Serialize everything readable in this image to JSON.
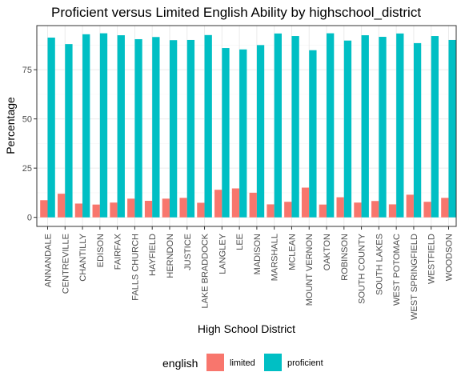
{
  "chart_data": {
    "type": "bar",
    "title": "Proficient versus Limited English Ability by highschool_district",
    "xlabel": "High School District",
    "ylabel": "Percentage",
    "ylim": [
      -4.6,
      97.4
    ],
    "yticks": [
      0,
      25,
      50,
      75
    ],
    "grid": true,
    "legend": {
      "title": "english",
      "placement": "bottom"
    },
    "categories": [
      "ANNANDALE",
      "CENTREVILLE",
      "CHANTILLY",
      "EDISON",
      "FAIRFAX",
      "FALLS CHURCH",
      "HAYFIELD",
      "HERNDON",
      "JUSTICE",
      "LAKE BRADDOCK",
      "LANGLEY",
      "LEE",
      "MADISON",
      "MARSHALL",
      "MCLEAN",
      "MOUNT VERNON",
      "OAKTON",
      "ROBINSON",
      "SOUTH COUNTY",
      "SOUTH LAKES",
      "WEST POTOMAC",
      "WEST SPRINGFIELD",
      "WESTFIELD",
      "WOODSON"
    ],
    "series": [
      {
        "name": "limited",
        "color": "#F8766D",
        "values": [
          8.7,
          12.0,
          7.0,
          6.5,
          7.5,
          9.5,
          8.4,
          9.5,
          9.9,
          7.4,
          14.0,
          14.7,
          12.5,
          6.6,
          7.9,
          15.1,
          6.5,
          10.2,
          7.5,
          8.3,
          6.6,
          11.5,
          7.9,
          9.9
        ]
      },
      {
        "name": "proficient",
        "color": "#00BFC4",
        "values": [
          91.3,
          88.0,
          93.0,
          93.5,
          92.5,
          90.5,
          91.6,
          90.0,
          90.1,
          92.6,
          86.0,
          85.3,
          87.5,
          93.4,
          92.1,
          84.9,
          93.5,
          89.8,
          92.5,
          91.7,
          93.4,
          88.5,
          92.1,
          90.1
        ]
      }
    ]
  }
}
